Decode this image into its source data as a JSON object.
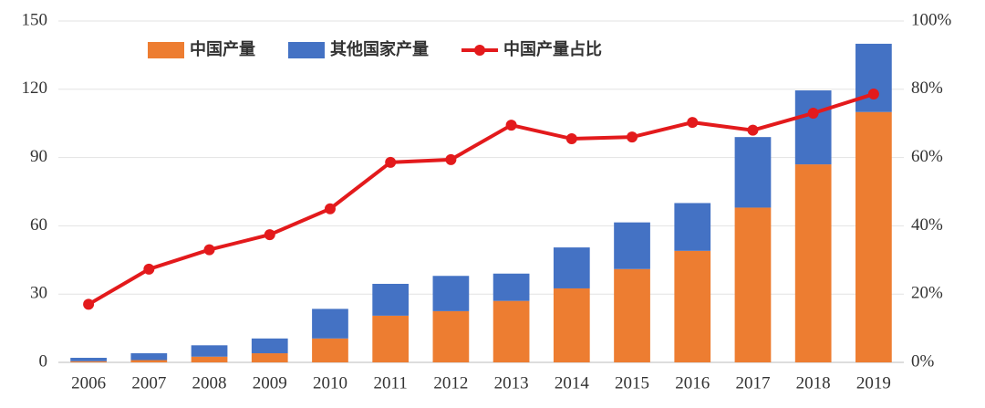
{
  "chart_data": {
    "type": "bar",
    "categories": [
      "2006",
      "2007",
      "2008",
      "2009",
      "2010",
      "2011",
      "2012",
      "2013",
      "2014",
      "2015",
      "2016",
      "2017",
      "2018",
      "2019"
    ],
    "stacked": true,
    "series": [
      {
        "name": "中国产量",
        "color": "#ed7d31",
        "values": [
          0.5,
          1,
          2.5,
          4,
          10.5,
          20.5,
          22.5,
          27,
          32.5,
          41,
          49,
          68,
          87,
          110
        ]
      },
      {
        "name": "其他国家产量",
        "color": "#4472c4",
        "values": [
          1.5,
          3,
          5,
          6.5,
          13,
          14,
          15.5,
          12,
          18,
          20.5,
          21,
          31,
          32.5,
          30
        ]
      },
      {
        "name": "中国产量占比",
        "type": "line",
        "axis": "y2",
        "color": "#e31a1c",
        "values": [
          17,
          27.3,
          33,
          37.4,
          45,
          58.6,
          59.4,
          69.5,
          65.5,
          66,
          70.3,
          68,
          73,
          78.6
        ]
      }
    ],
    "ylim": [
      0,
      150
    ],
    "yticks": [
      0,
      30,
      60,
      90,
      120,
      150
    ],
    "y2lim": [
      0,
      100
    ],
    "y2ticks": [
      {
        "value": 0,
        "label": "0%"
      },
      {
        "value": 20,
        "label": "20%"
      },
      {
        "value": 40,
        "label": "40%"
      },
      {
        "value": 60,
        "label": "60%"
      },
      {
        "value": 80,
        "label": "80%"
      },
      {
        "value": 100,
        "label": "100%"
      }
    ],
    "grid": true,
    "legend": "top"
  }
}
